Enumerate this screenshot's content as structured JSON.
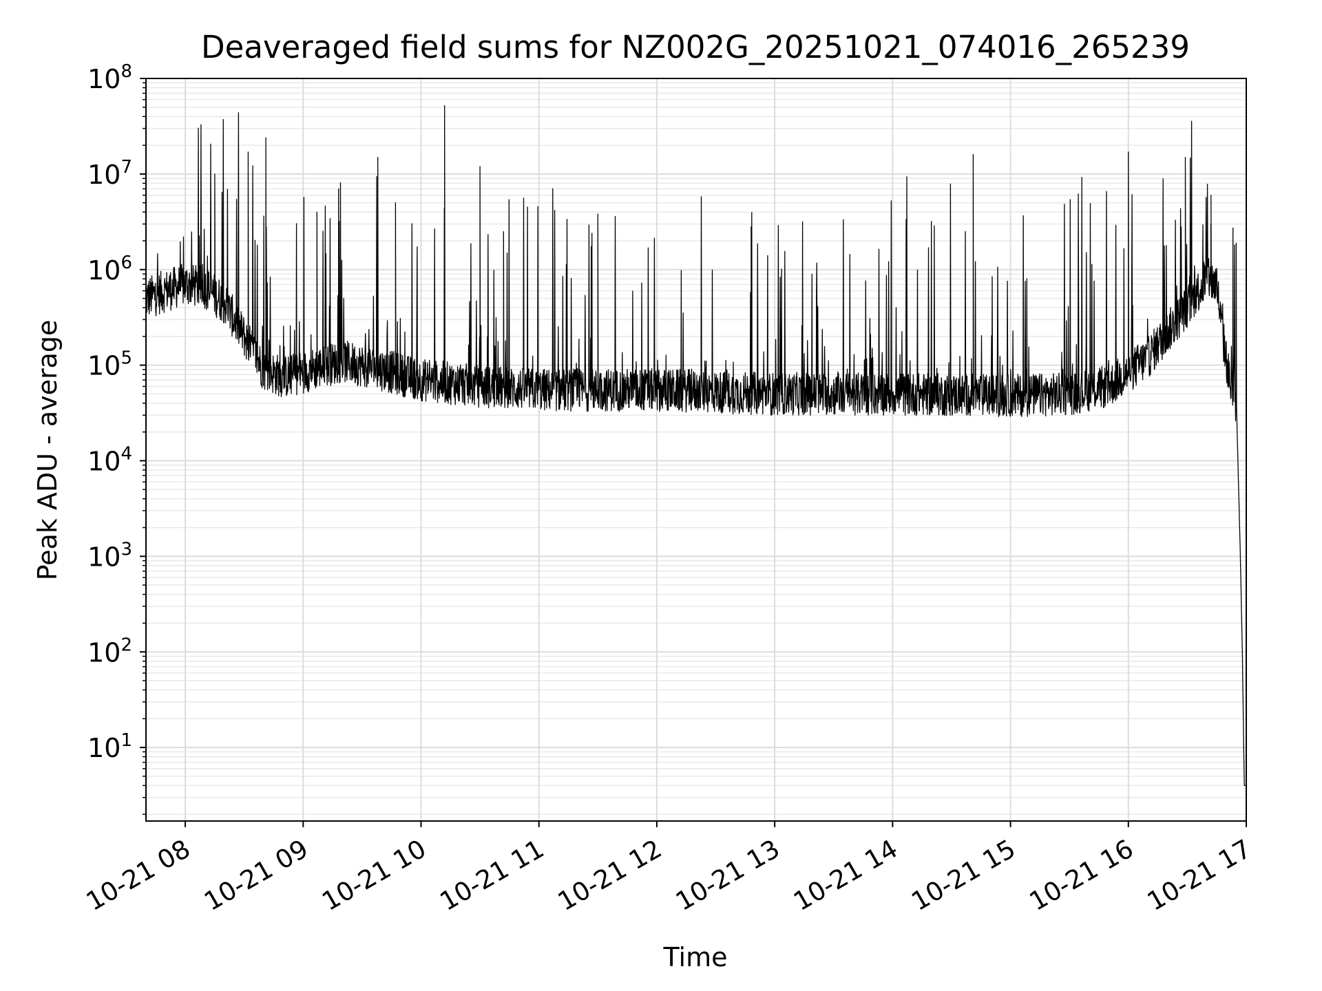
{
  "chart_data": {
    "type": "line",
    "title": "Deaveraged field sums for NZ002G_20251021_074016_265239",
    "xlabel": "Time",
    "ylabel": "Peak ADU - average",
    "yscale": "log",
    "grid": true,
    "x_ticks": [
      "10-21 08",
      "10-21 09",
      "10-21 10",
      "10-21 11",
      "10-21 12",
      "10-21 13",
      "10-21 14",
      "10-21 15",
      "10-21 16",
      "10-21 17"
    ],
    "y_ticks": [
      {
        "base": "10",
        "exp": "1",
        "value": 10
      },
      {
        "base": "10",
        "exp": "2",
        "value": 100
      },
      {
        "base": "10",
        "exp": "3",
        "value": 1000
      },
      {
        "base": "10",
        "exp": "4",
        "value": 10000
      },
      {
        "base": "10",
        "exp": "5",
        "value": 100000
      },
      {
        "base": "10",
        "exp": "6",
        "value": 1000000
      },
      {
        "base": "10",
        "exp": "7",
        "value": 10000000
      },
      {
        "base": "10",
        "exp": "8",
        "value": 100000000
      }
    ],
    "ylim": [
      1.7,
      100000000
    ],
    "xlim": [
      "2025-10-21 07:40",
      "2025-10-21 17:00"
    ],
    "line_color": "#000000",
    "series": [
      {
        "points": [
          [
            "2025-10-21 07:40",
            500000
          ],
          [
            "2025-10-21 07:50",
            600000
          ],
          [
            "2025-10-21 08:00",
            700000
          ],
          [
            "2025-10-21 08:10",
            650000
          ],
          [
            "2025-10-21 08:20",
            450000
          ],
          [
            "2025-10-21 08:30",
            200000
          ],
          [
            "2025-10-21 08:40",
            90000
          ],
          [
            "2025-10-21 08:50",
            75000
          ],
          [
            "2025-10-21 09:00",
            85000
          ],
          [
            "2025-10-21 09:20",
            110000
          ],
          [
            "2025-10-21 09:40",
            90000
          ],
          [
            "2025-10-21 10:00",
            70000
          ],
          [
            "2025-10-21 10:30",
            60000
          ],
          [
            "2025-10-21 11:00",
            55000
          ],
          [
            "2025-10-21 12:00",
            55000
          ],
          [
            "2025-10-21 13:00",
            50000
          ],
          [
            "2025-10-21 14:00",
            50000
          ],
          [
            "2025-10-21 15:00",
            48000
          ],
          [
            "2025-10-21 15:30",
            50000
          ],
          [
            "2025-10-21 15:50",
            60000
          ],
          [
            "2025-10-21 16:10",
            120000
          ],
          [
            "2025-10-21 16:25",
            300000
          ],
          [
            "2025-10-21 16:40",
            800000
          ],
          [
            "2025-10-21 16:45",
            700000
          ],
          [
            "2025-10-21 16:48",
            200000
          ],
          [
            "2025-10-21 16:52",
            60000
          ],
          [
            "2025-10-21 16:55",
            40000
          ],
          [
            "2025-10-21 16:57",
            1000
          ],
          [
            "2025-10-21 16:58",
            100
          ],
          [
            "2025-10-21 16:59",
            4
          ]
        ],
        "spikes": [
          [
            "2025-10-21 08:15",
            10000000
          ],
          [
            "2025-10-21 08:32",
            17000000
          ],
          [
            "2025-10-21 08:41",
            24000000
          ],
          [
            "2025-10-21 09:07",
            4000000
          ],
          [
            "2025-10-21 09:18",
            7000000
          ],
          [
            "2025-10-21 09:38",
            15000000
          ],
          [
            "2025-10-21 09:47",
            5000000
          ],
          [
            "2025-10-21 10:12",
            52000000
          ],
          [
            "2025-10-21 10:30",
            12000000
          ],
          [
            "2025-10-21 10:42",
            2500000
          ],
          [
            "2025-10-21 11:30",
            3800000
          ],
          [
            "2025-10-21 12:48",
            2800000
          ],
          [
            "2025-10-21 14:41",
            16000000
          ],
          [
            "2025-10-21 16:00",
            17000000
          ],
          [
            "2025-10-21 16:29",
            15000000
          ],
          [
            "2025-10-21 16:42",
            3000000
          ]
        ]
      }
    ]
  }
}
